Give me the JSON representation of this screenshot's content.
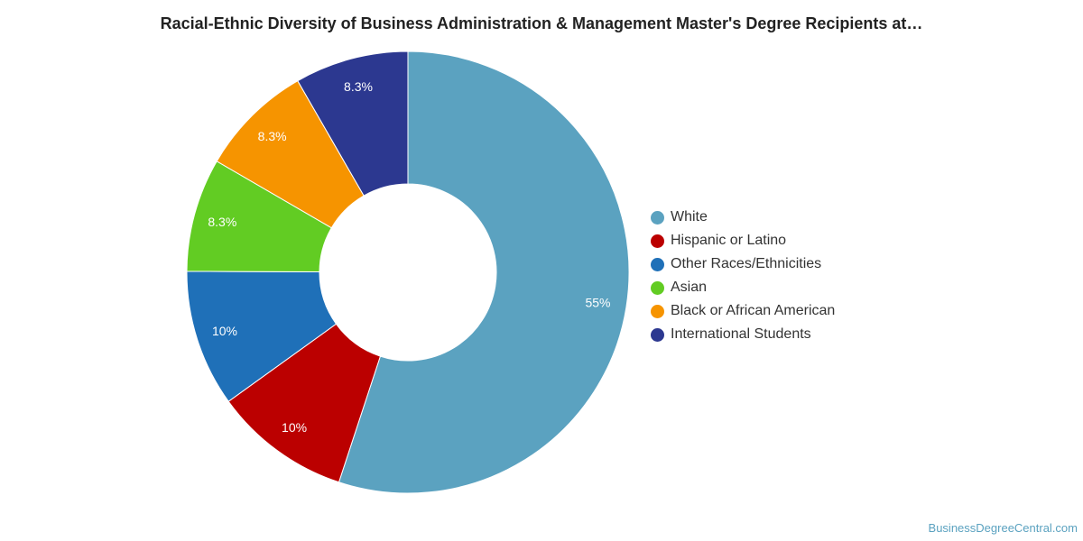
{
  "chart_data": {
    "type": "pie",
    "title": "Racial-Ethnic Diversity of Business Administration & Management Master's Degree Recipients at…",
    "donut": true,
    "legend_position": "right",
    "slices": [
      {
        "name": "White",
        "value": 55,
        "label": "55%",
        "color": "#5ba2c0"
      },
      {
        "name": "Hispanic or Latino",
        "value": 10,
        "label": "10%",
        "color": "#bb0000"
      },
      {
        "name": "Other Races/Ethnicities",
        "value": 10,
        "label": "10%",
        "color": "#1f70b8"
      },
      {
        "name": "Asian",
        "value": 8.3,
        "label": "8.3%",
        "color": "#62cc23"
      },
      {
        "name": "Black or African American",
        "value": 8.3,
        "label": "8.3%",
        "color": "#f69400"
      },
      {
        "name": "International Students",
        "value": 8.3,
        "label": "8.3%",
        "color": "#2c3890"
      }
    ]
  },
  "footer": {
    "credit": "BusinessDegreeCentral.com"
  }
}
